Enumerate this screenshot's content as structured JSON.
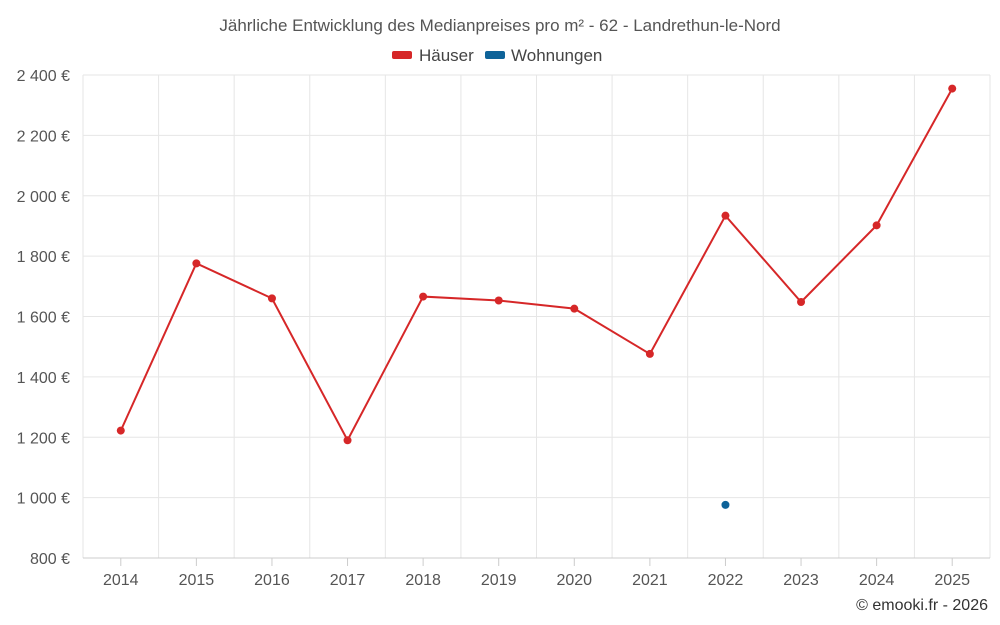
{
  "chart_data": {
    "type": "line",
    "title": "Jährliche Entwicklung des Medianpreises pro m² - 62 - Landrethun-le-Nord",
    "categories": [
      "2014",
      "2015",
      "2016",
      "2017",
      "2018",
      "2019",
      "2020",
      "2021",
      "2022",
      "2023",
      "2024",
      "2025"
    ],
    "ylim": [
      800,
      2400
    ],
    "yticks": [
      800,
      1000,
      1200,
      1400,
      1600,
      1800,
      2000,
      2200,
      2400
    ],
    "ytick_labels": [
      "800 €",
      "1 000 €",
      "1 200 €",
      "1 400 €",
      "1 600 €",
      "1 800 €",
      "2 000 €",
      "2 200 €",
      "2 400 €"
    ],
    "series": [
      {
        "name": "Häuser",
        "color": "#d62728",
        "values": [
          1222,
          1776,
          1660,
          1190,
          1666,
          1653,
          1626,
          1476,
          1934,
          1648,
          1902,
          2355
        ]
      },
      {
        "name": "Wohnungen",
        "color": "#0e6399",
        "values": [
          null,
          null,
          null,
          null,
          null,
          null,
          null,
          null,
          976,
          null,
          null,
          null
        ]
      }
    ],
    "legend_position": "top-center",
    "grid": true
  },
  "credit": "© emooki.fr - 2026"
}
